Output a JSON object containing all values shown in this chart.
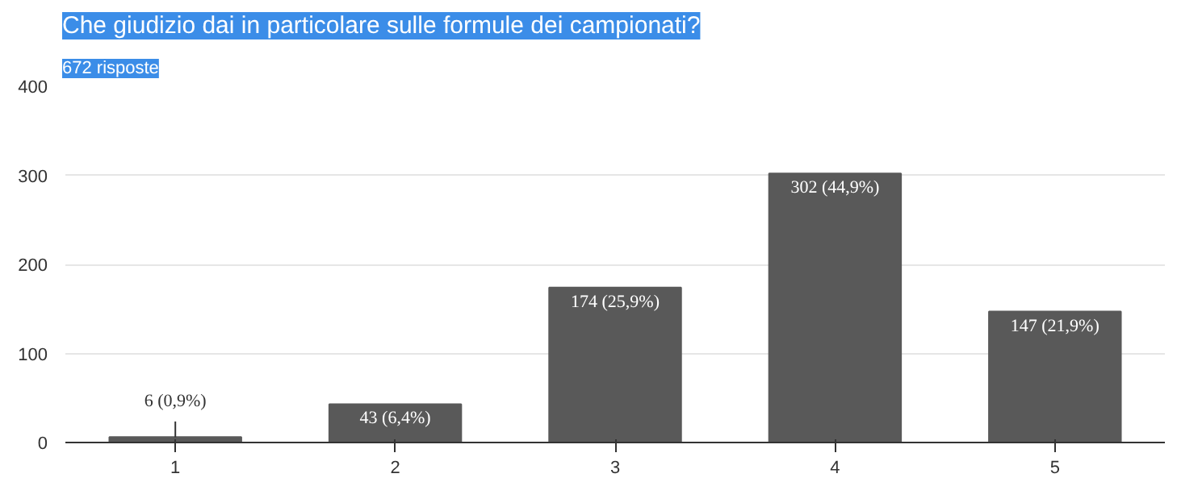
{
  "chart_data": {
    "type": "bar",
    "title": "Che giudizio dai in particolare sulle formule dei campionati?",
    "subtitle": "672 risposte",
    "categories": [
      "1",
      "2",
      "3",
      "4",
      "5"
    ],
    "values": [
      6,
      43,
      174,
      302,
      147
    ],
    "value_labels": [
      "6 (0,9%)",
      "43 (6,4%)",
      "174 (25,9%)",
      "302 (44,9%)",
      "147 (21,9%)"
    ],
    "color": "#595959",
    "ylim": [
      0,
      400
    ],
    "yticks": [
      0,
      100,
      200,
      300,
      400
    ],
    "grid": "y"
  }
}
